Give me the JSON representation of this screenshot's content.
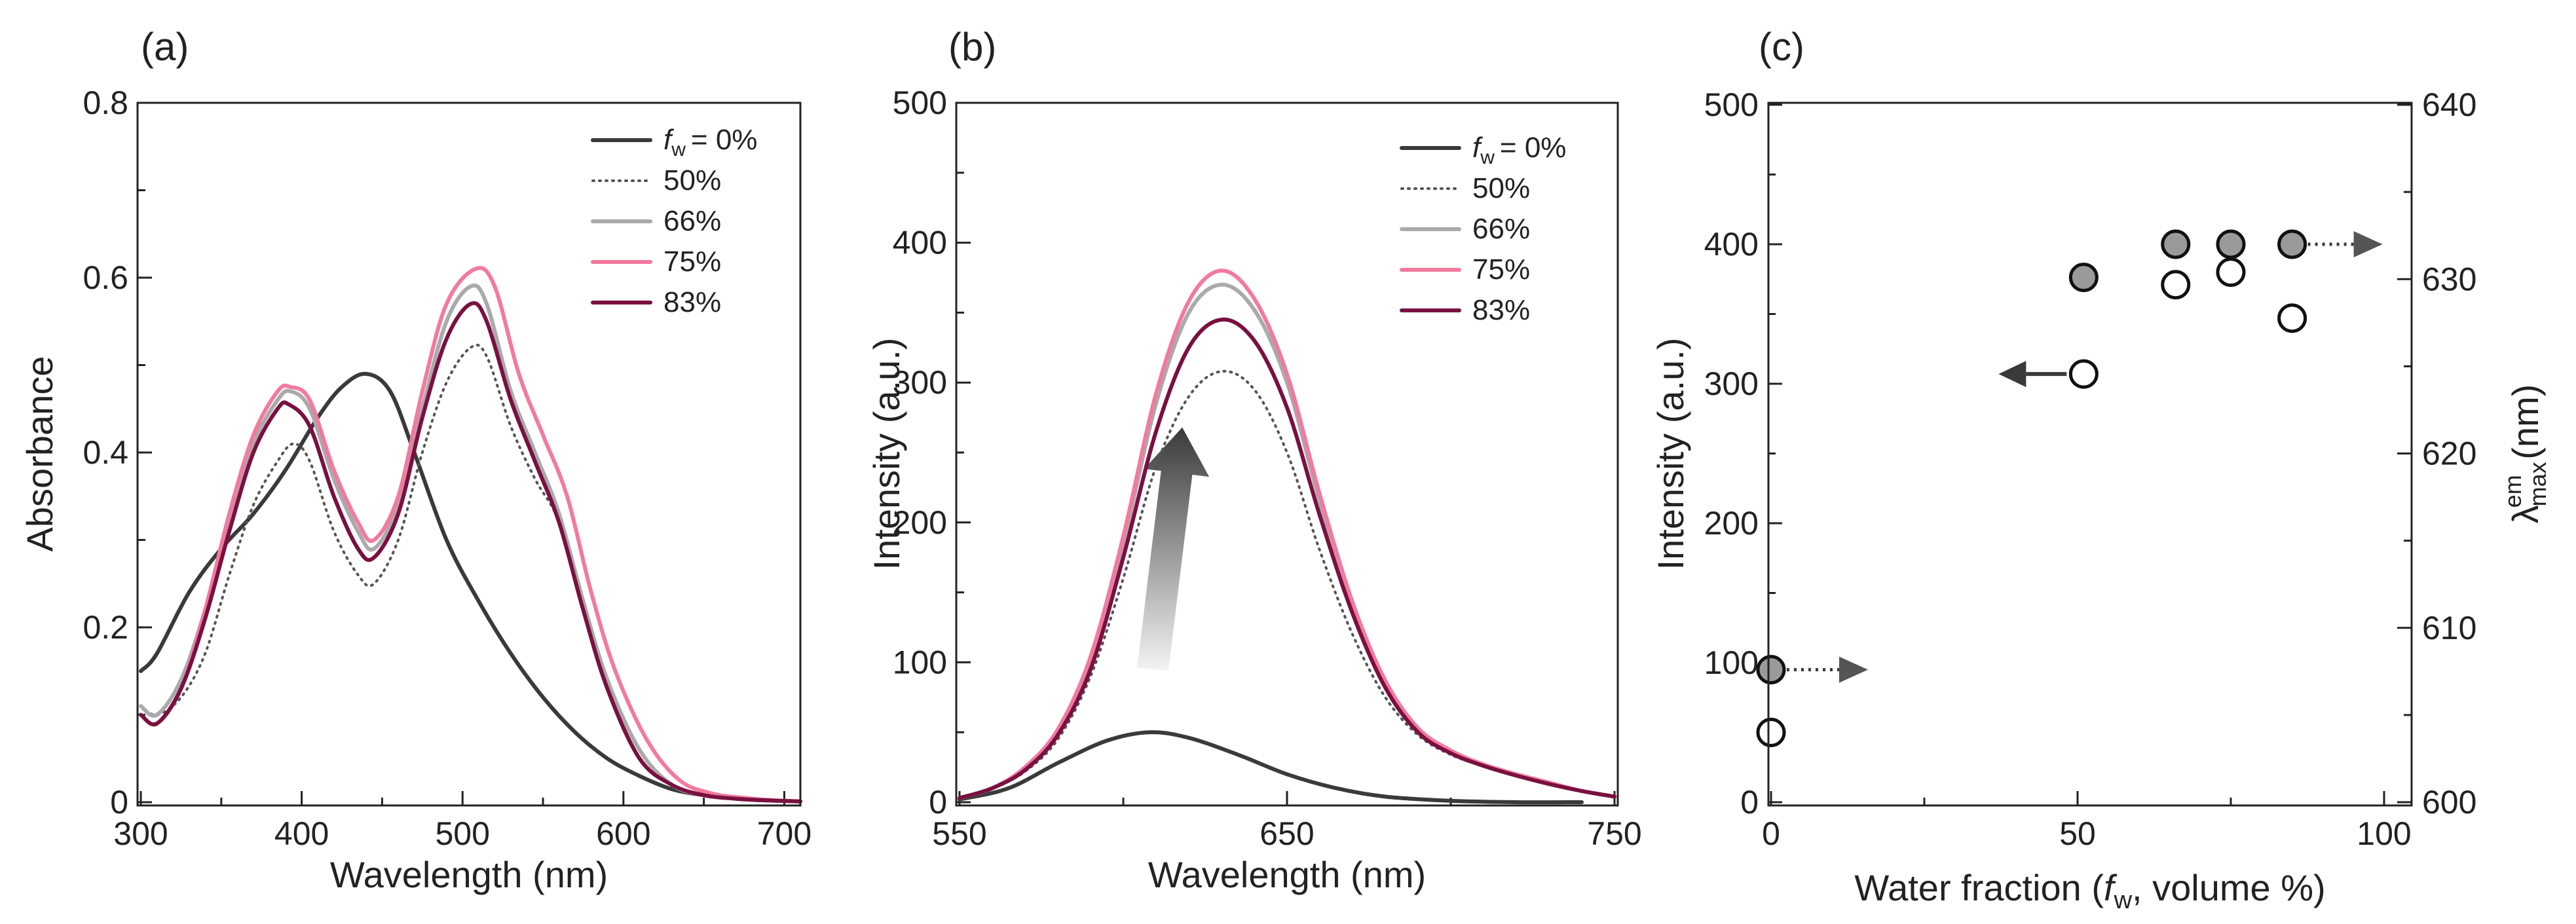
{
  "colors": {
    "fw0": "#3a3a3a",
    "fw50": "#555555",
    "fw66": "#aaaaaa",
    "fw75": "#f27a9e",
    "fw83": "#7a1040",
    "marker_fill": "#9a9a9a",
    "arrow": "#3a3a3a"
  },
  "chart_data": [
    {
      "panel": "(a)",
      "type": "line",
      "xlabel": "Wavelength (nm)",
      "ylabel": "Absorbance",
      "xlim": [
        300,
        710
      ],
      "ylim": [
        0,
        0.8
      ],
      "xticks": [
        300,
        400,
        500,
        600,
        700
      ],
      "xtick_labels": [
        "300",
        "400",
        "500",
        "600",
        "700"
      ],
      "yticks": [
        0,
        0.2,
        0.4,
        0.6,
        0.8
      ],
      "ytick_labels": [
        "0",
        "0.2",
        "0.4",
        "0.6",
        "0.8"
      ],
      "legend_position": "top-right",
      "legend_prefix": "f",
      "legend_prefix_sub": "w",
      "series": [
        {
          "key": "fw0",
          "name": "= 0%",
          "dash": "solid",
          "x": [
            300,
            310,
            330,
            350,
            370,
            390,
            410,
            425,
            440,
            455,
            470,
            490,
            510,
            530,
            550,
            570,
            590,
            610,
            630,
            650,
            670,
            690,
            710
          ],
          "y": [
            0.15,
            0.17,
            0.24,
            0.29,
            0.33,
            0.38,
            0.44,
            0.475,
            0.49,
            0.47,
            0.4,
            0.3,
            0.23,
            0.17,
            0.12,
            0.08,
            0.05,
            0.03,
            0.015,
            0.008,
            0.004,
            0.002,
            0.001
          ]
        },
        {
          "key": "fw50",
          "name": "50%",
          "dash": "dotted",
          "x": [
            300,
            310,
            325,
            340,
            355,
            370,
            385,
            395,
            405,
            420,
            435,
            445,
            460,
            475,
            490,
            505,
            515,
            530,
            545,
            560,
            575,
            590,
            610,
            630,
            650,
            670,
            690,
            710
          ],
          "y": [
            0.11,
            0.1,
            0.12,
            0.17,
            0.26,
            0.34,
            0.39,
            0.41,
            0.39,
            0.31,
            0.26,
            0.25,
            0.3,
            0.4,
            0.48,
            0.52,
            0.51,
            0.43,
            0.37,
            0.32,
            0.22,
            0.14,
            0.06,
            0.02,
            0.008,
            0.004,
            0.002,
            0.001
          ]
        },
        {
          "key": "fw66",
          "name": "66%",
          "dash": "solid",
          "x": [
            300,
            310,
            325,
            340,
            355,
            370,
            385,
            393,
            405,
            420,
            435,
            445,
            460,
            475,
            490,
            505,
            515,
            530,
            545,
            560,
            575,
            590,
            610,
            630,
            650,
            670,
            690,
            710
          ],
          "y": [
            0.11,
            0.1,
            0.14,
            0.22,
            0.32,
            0.41,
            0.46,
            0.47,
            0.45,
            0.37,
            0.31,
            0.29,
            0.34,
            0.45,
            0.55,
            0.59,
            0.57,
            0.47,
            0.4,
            0.33,
            0.23,
            0.14,
            0.06,
            0.02,
            0.008,
            0.004,
            0.002,
            0.001
          ]
        },
        {
          "key": "fw75",
          "name": "75%",
          "dash": "solid",
          "x": [
            300,
            310,
            325,
            340,
            355,
            370,
            385,
            393,
            405,
            420,
            435,
            445,
            460,
            475,
            490,
            508,
            520,
            535,
            550,
            565,
            580,
            595,
            615,
            635,
            655,
            675,
            695,
            710
          ],
          "y": [
            0.1,
            0.09,
            0.13,
            0.22,
            0.33,
            0.42,
            0.47,
            0.475,
            0.46,
            0.38,
            0.32,
            0.3,
            0.35,
            0.47,
            0.57,
            0.61,
            0.59,
            0.49,
            0.42,
            0.35,
            0.24,
            0.15,
            0.07,
            0.025,
            0.01,
            0.005,
            0.002,
            0.001
          ]
        },
        {
          "key": "fw83",
          "name": "83%",
          "dash": "solid",
          "x": [
            300,
            310,
            325,
            340,
            355,
            370,
            385,
            392,
            405,
            420,
            435,
            445,
            460,
            475,
            490,
            505,
            515,
            530,
            545,
            560,
            575,
            590,
            610,
            630,
            650,
            670,
            690,
            710
          ],
          "y": [
            0.1,
            0.09,
            0.13,
            0.21,
            0.31,
            0.4,
            0.45,
            0.455,
            0.43,
            0.35,
            0.29,
            0.28,
            0.33,
            0.44,
            0.53,
            0.57,
            0.55,
            0.46,
            0.39,
            0.32,
            0.22,
            0.13,
            0.05,
            0.02,
            0.008,
            0.004,
            0.002,
            0.001
          ]
        }
      ]
    },
    {
      "panel": "(b)",
      "type": "line",
      "xlabel": "Wavelength (nm)",
      "ylabel": "Intensity (a.u.)",
      "xlim": [
        550,
        750
      ],
      "ylim": [
        0,
        500
      ],
      "xticks": [
        550,
        650,
        750
      ],
      "xtick_labels": [
        "550",
        "650",
        "750"
      ],
      "yticks": [
        0,
        100,
        200,
        300,
        400,
        500
      ],
      "ytick_labels": [
        "0",
        "100",
        "200",
        "300",
        "400",
        "500"
      ],
      "legend_position": "top-right",
      "legend_prefix": "f",
      "legend_prefix_sub": "w",
      "annotation": "gradient arrow pointing up (increasing intensity with water fraction)",
      "series": [
        {
          "key": "fw0",
          "name": "= 0%",
          "dash": "solid",
          "x": [
            550,
            565,
            580,
            595,
            608,
            620,
            635,
            650,
            665,
            680,
            700,
            720,
            740
          ],
          "y": [
            2,
            10,
            28,
            44,
            50,
            46,
            34,
            20,
            10,
            4,
            1,
            0,
            0
          ]
        },
        {
          "key": "fw50",
          "name": "50%",
          "dash": "dotted",
          "x": [
            550,
            560,
            570,
            580,
            590,
            600,
            610,
            620,
            630,
            640,
            650,
            660,
            670,
            680,
            690,
            700,
            710,
            720,
            730,
            740,
            750
          ],
          "y": [
            3,
            10,
            22,
            45,
            90,
            160,
            240,
            290,
            308,
            295,
            250,
            180,
            120,
            75,
            48,
            34,
            26,
            20,
            14,
            8,
            4
          ]
        },
        {
          "key": "fw66",
          "name": "66%",
          "dash": "solid",
          "x": [
            550,
            560,
            570,
            580,
            590,
            600,
            610,
            620,
            630,
            640,
            650,
            660,
            670,
            680,
            690,
            700,
            710,
            720,
            730,
            740,
            750
          ],
          "y": [
            3,
            10,
            24,
            50,
            100,
            185,
            285,
            350,
            370,
            352,
            300,
            215,
            140,
            85,
            52,
            36,
            27,
            20,
            14,
            8,
            4
          ]
        },
        {
          "key": "fw75",
          "name": "75%",
          "dash": "solid",
          "x": [
            550,
            560,
            570,
            580,
            590,
            600,
            610,
            620,
            630,
            640,
            650,
            660,
            670,
            680,
            690,
            700,
            710,
            720,
            730,
            740,
            750
          ],
          "y": [
            3,
            10,
            25,
            52,
            104,
            190,
            292,
            358,
            380,
            360,
            306,
            220,
            143,
            87,
            53,
            37,
            27,
            20,
            14,
            8,
            4
          ]
        },
        {
          "key": "fw83",
          "name": "83%",
          "dash": "solid",
          "x": [
            550,
            560,
            570,
            580,
            590,
            600,
            610,
            620,
            630,
            640,
            650,
            660,
            670,
            680,
            690,
            700,
            710,
            720,
            730,
            740,
            750
          ],
          "y": [
            3,
            10,
            23,
            48,
            95,
            175,
            265,
            325,
            345,
            330,
            282,
            205,
            135,
            82,
            50,
            35,
            26,
            19,
            13,
            8,
            4
          ]
        }
      ]
    },
    {
      "panel": "(c)",
      "type": "scatter",
      "xlabel": "Water fraction (fw, volume %)",
      "xlabel_parts": [
        "Water fraction (",
        "f",
        "w",
        ", volume %)"
      ],
      "ylabel": "Intensity (a.u.)",
      "y2label": "λ max em (nm)",
      "y2label_parts": [
        "λ",
        "max",
        "em",
        " (nm)"
      ],
      "xlim": [
        0,
        100
      ],
      "ylim": [
        0,
        500
      ],
      "y2lim": [
        600,
        640
      ],
      "xticks": [
        0,
        50,
        100
      ],
      "xtick_labels": [
        "0",
        "50",
        "100"
      ],
      "yticks": [
        0,
        100,
        200,
        300,
        400,
        500
      ],
      "ytick_labels": [
        "0",
        "100",
        "200",
        "300",
        "400",
        "500"
      ],
      "y2ticks": [
        600,
        610,
        620,
        630,
        640
      ],
      "y2tick_labels": [
        "600",
        "610",
        "620",
        "630",
        "640"
      ],
      "series": [
        {
          "name": "Intensity",
          "axis": "left",
          "marker": "open-circle",
          "x": [
            0,
            51,
            66,
            75,
            85
          ],
          "y": [
            50,
            307,
            371,
            380,
            347
          ]
        },
        {
          "name": "λmax em",
          "axis": "right",
          "marker": "filled-circle",
          "x": [
            0,
            51,
            66,
            75,
            85
          ],
          "y": [
            607.6,
            630.1,
            632,
            632,
            632
          ]
        }
      ]
    }
  ]
}
